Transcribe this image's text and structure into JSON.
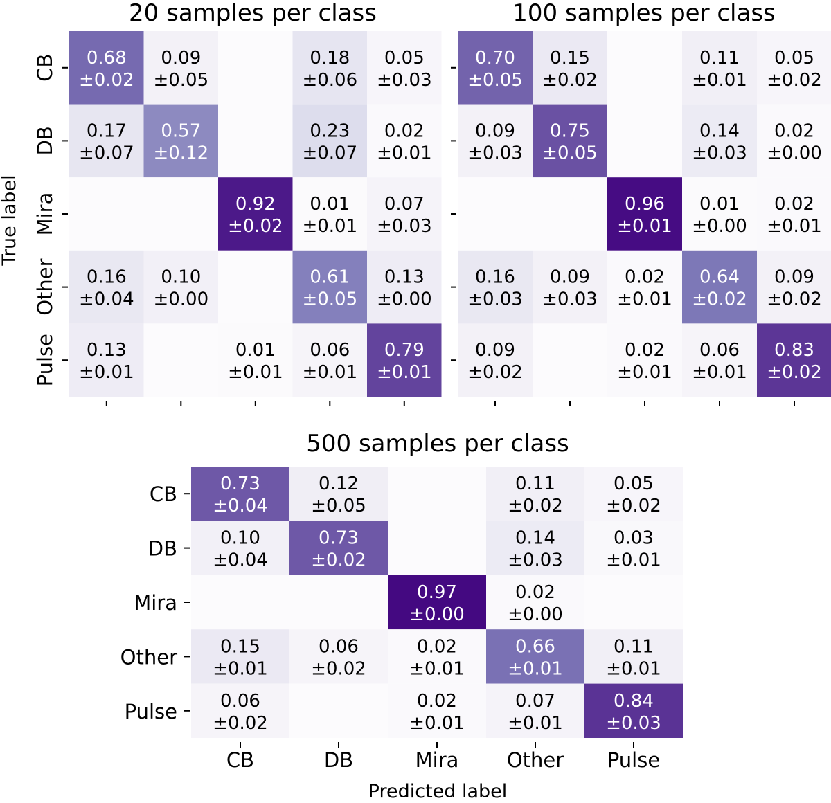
{
  "chart_data": [
    {
      "type": "heatmap",
      "title": "20 samples per class",
      "ylabel": "True label",
      "xlabel": "",
      "row_labels": [
        "CB",
        "DB",
        "Mira",
        "Other",
        "Pulse"
      ],
      "col_labels": [],
      "values": [
        [
          0.68,
          0.09,
          null,
          0.18,
          0.05
        ],
        [
          0.17,
          0.57,
          null,
          0.23,
          0.02
        ],
        [
          null,
          null,
          0.92,
          0.01,
          0.07
        ],
        [
          0.16,
          0.1,
          null,
          0.61,
          0.13
        ],
        [
          0.13,
          null,
          0.01,
          0.06,
          0.79
        ]
      ],
      "errors": [
        [
          0.02,
          0.05,
          null,
          0.06,
          0.03
        ],
        [
          0.07,
          0.12,
          null,
          0.07,
          0.01
        ],
        [
          null,
          null,
          0.02,
          0.01,
          0.03
        ],
        [
          0.04,
          0.0,
          null,
          0.05,
          0.0
        ],
        [
          0.01,
          null,
          0.01,
          0.01,
          0.01
        ]
      ]
    },
    {
      "type": "heatmap",
      "title": "100 samples per class",
      "ylabel": "",
      "xlabel": "",
      "row_labels": [],
      "col_labels": [],
      "values": [
        [
          0.7,
          0.15,
          null,
          0.11,
          0.05
        ],
        [
          0.09,
          0.75,
          null,
          0.14,
          0.02
        ],
        [
          null,
          null,
          0.96,
          0.01,
          0.02
        ],
        [
          0.16,
          0.09,
          0.02,
          0.64,
          0.09
        ],
        [
          0.09,
          null,
          0.02,
          0.06,
          0.83
        ]
      ],
      "errors": [
        [
          0.05,
          0.02,
          null,
          0.01,
          0.02
        ],
        [
          0.03,
          0.05,
          null,
          0.03,
          0.0
        ],
        [
          null,
          null,
          0.01,
          0.0,
          0.01
        ],
        [
          0.03,
          0.03,
          0.01,
          0.02,
          0.02
        ],
        [
          0.02,
          null,
          0.01,
          0.01,
          0.02
        ]
      ]
    },
    {
      "type": "heatmap",
      "title": "500 samples per class",
      "ylabel": "",
      "xlabel": "Predicted label",
      "row_labels": [
        "CB",
        "DB",
        "Mira",
        "Other",
        "Pulse"
      ],
      "col_labels": [
        "CB",
        "DB",
        "Mira",
        "Other",
        "Pulse"
      ],
      "values": [
        [
          0.73,
          0.12,
          null,
          0.11,
          0.05
        ],
        [
          0.1,
          0.73,
          null,
          0.14,
          0.03
        ],
        [
          null,
          null,
          0.97,
          0.02,
          null
        ],
        [
          0.15,
          0.06,
          0.02,
          0.66,
          0.11
        ],
        [
          0.06,
          null,
          0.02,
          0.07,
          0.84
        ]
      ],
      "errors": [
        [
          0.04,
          0.05,
          null,
          0.02,
          0.02
        ],
        [
          0.04,
          0.02,
          null,
          0.03,
          0.01
        ],
        [
          null,
          null,
          0.0,
          0.0,
          null
        ],
        [
          0.01,
          0.02,
          0.01,
          0.01,
          0.01
        ],
        [
          0.02,
          null,
          0.01,
          0.01,
          0.03
        ]
      ]
    }
  ],
  "colors": {
    "empty_cell": "#fcfbfd",
    "low": "#fcfbfd",
    "high": "#3f007d",
    "colormap": "Purples"
  }
}
